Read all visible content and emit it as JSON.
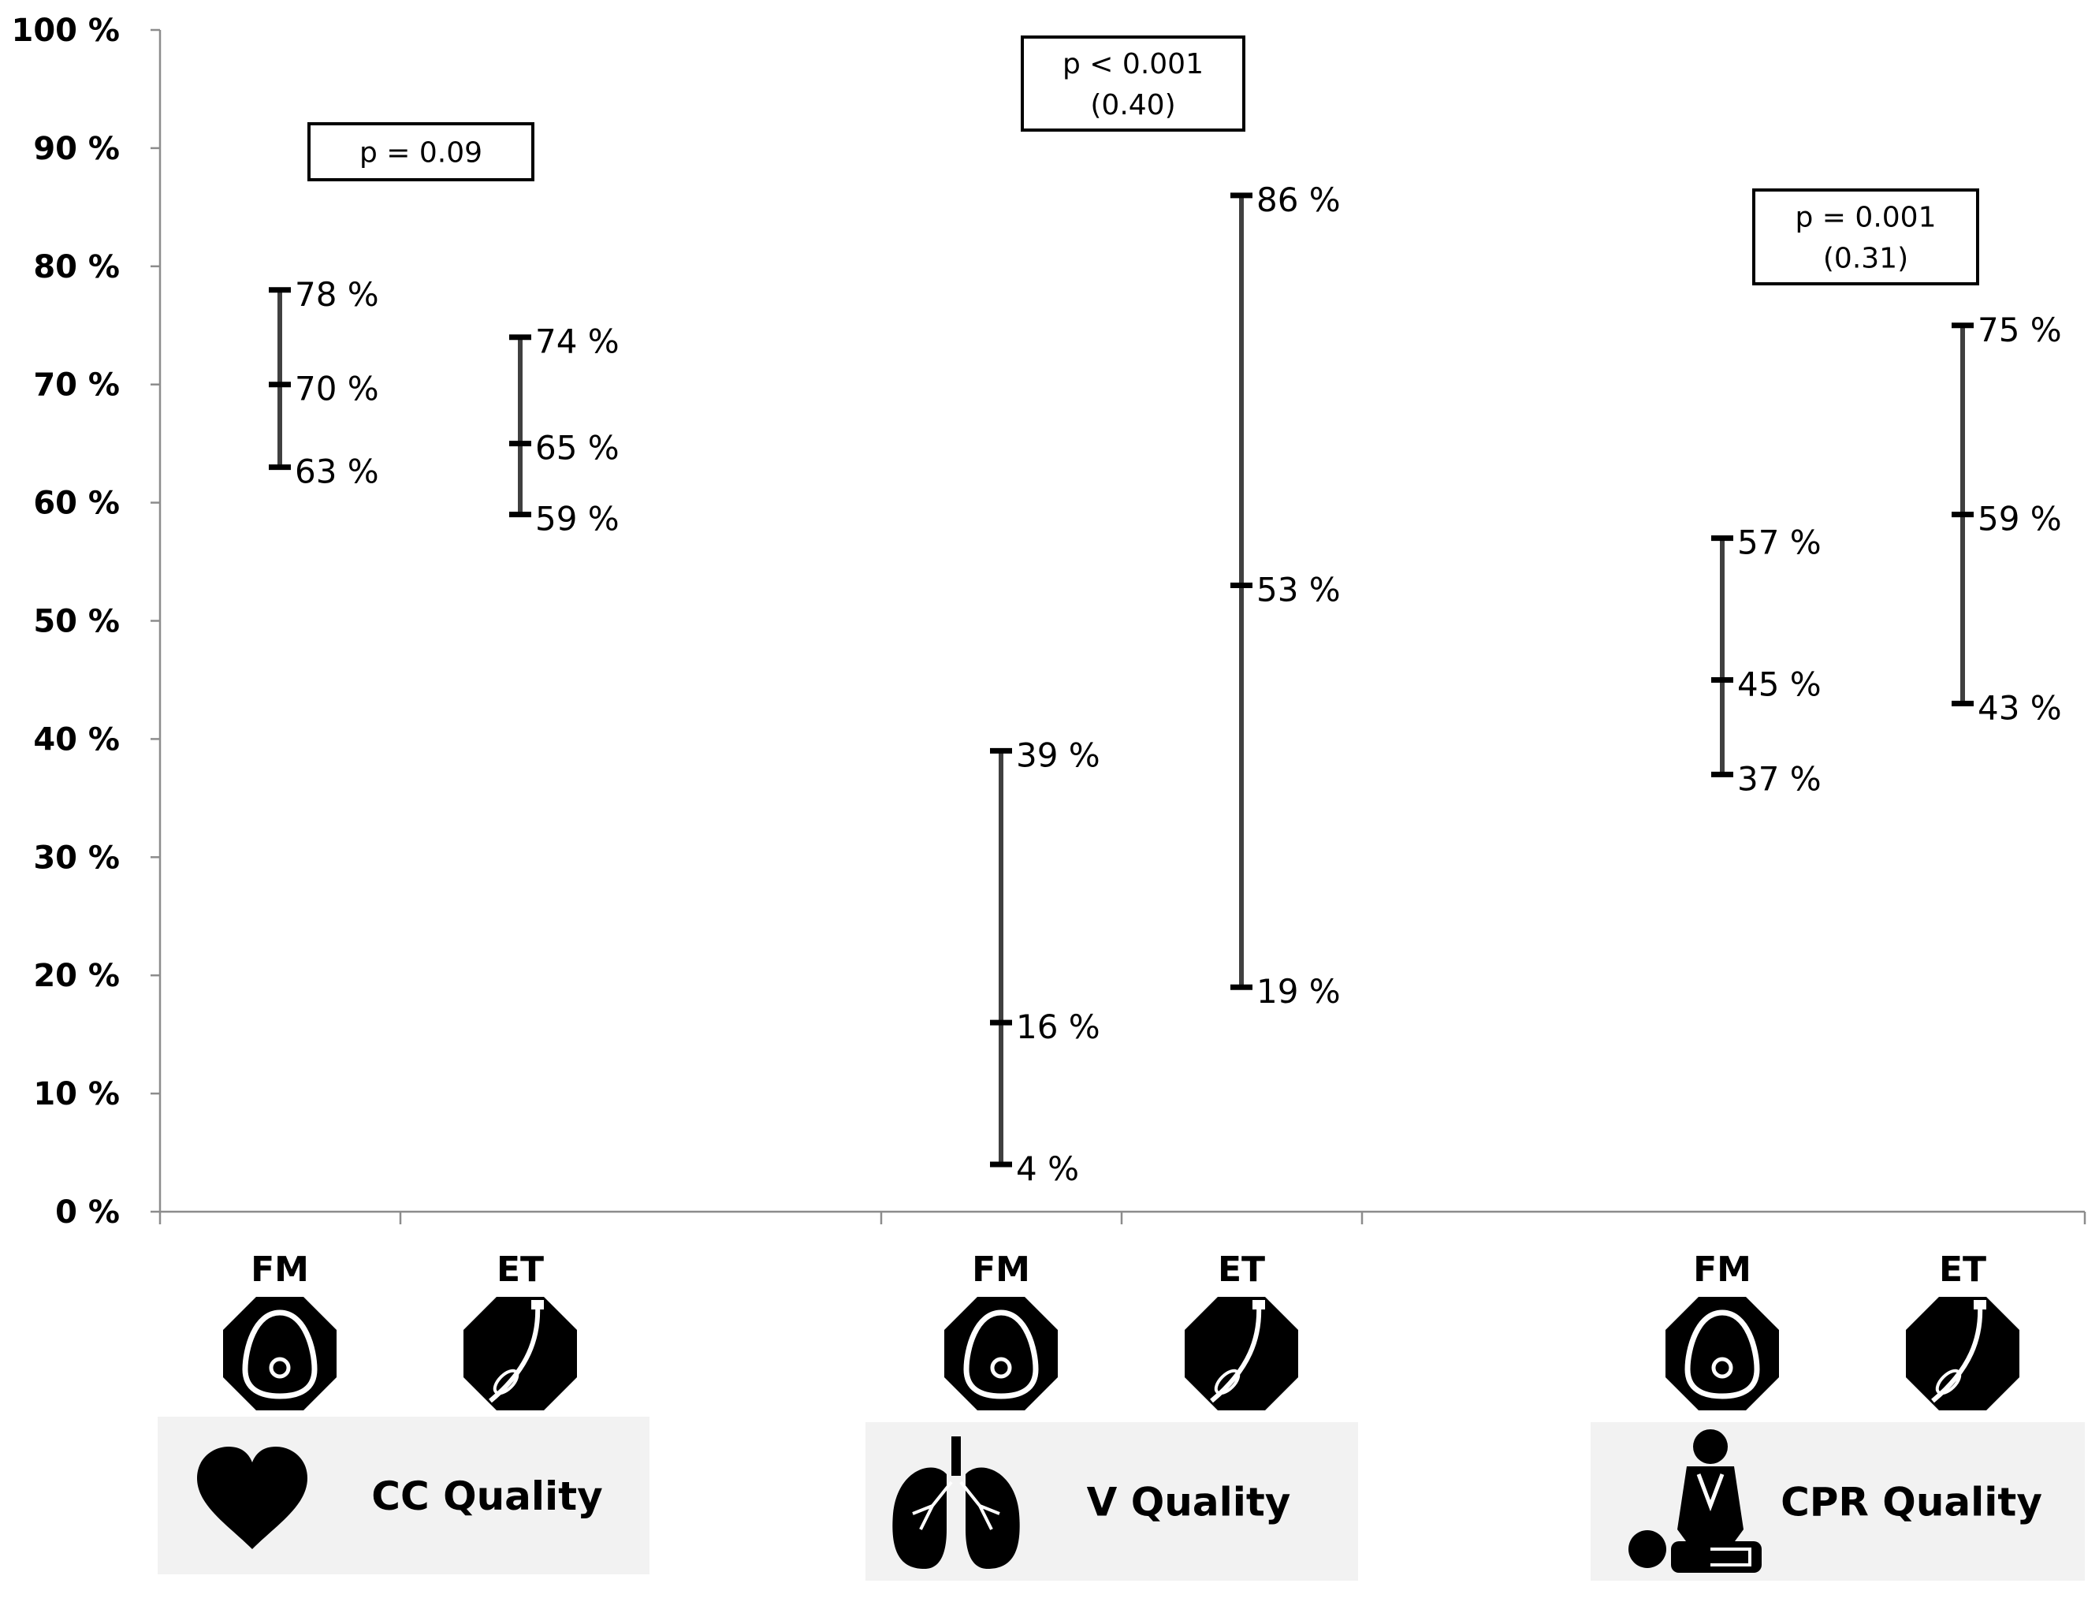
{
  "chart_data": {
    "type": "range",
    "ylim": [
      0,
      100
    ],
    "y_ticks": [
      "0 %",
      "10 %",
      "20 %",
      "30 %",
      "40 %",
      "50 %",
      "60 %",
      "70 %",
      "80 %",
      "90 %",
      "100 %"
    ],
    "groups": [
      {
        "name": "CC Quality",
        "icon": "heart-icon",
        "p_value": [
          "p = 0.09"
        ],
        "series": [
          {
            "name": "FM",
            "icon": "face-mask-icon",
            "low": 63,
            "mid": 70,
            "high": 78,
            "labels": [
              "63 %",
              "70 %",
              "78 %"
            ]
          },
          {
            "name": "ET",
            "icon": "endotracheal-tube-icon",
            "low": 59,
            "mid": 65,
            "high": 74,
            "labels": [
              "59 %",
              "65 %",
              "74 %"
            ]
          }
        ]
      },
      {
        "name": "V Quality",
        "icon": "lungs-icon",
        "p_value": [
          "p < 0.001",
          "(0.40)"
        ],
        "series": [
          {
            "name": "FM",
            "icon": "face-mask-icon",
            "low": 4,
            "mid": 16,
            "high": 39,
            "labels": [
              "4 %",
              "16 %",
              "39 %"
            ]
          },
          {
            "name": "ET",
            "icon": "endotracheal-tube-icon",
            "low": 19,
            "mid": 53,
            "high": 86,
            "labels": [
              "19 %",
              "53 %",
              "86 %"
            ]
          }
        ]
      },
      {
        "name": "CPR Quality",
        "icon": "cpr-icon",
        "p_value": [
          "p = 0.001",
          "(0.31)"
        ],
        "series": [
          {
            "name": "FM",
            "icon": "face-mask-icon",
            "low": 37,
            "mid": 45,
            "high": 57,
            "labels": [
              "37 %",
              "45 %",
              "57 %"
            ]
          },
          {
            "name": "ET",
            "icon": "endotracheal-tube-icon",
            "low": 43,
            "mid": 59,
            "high": 75,
            "labels": [
              "43 %",
              "59 %",
              "75 %"
            ]
          }
        ]
      }
    ]
  }
}
